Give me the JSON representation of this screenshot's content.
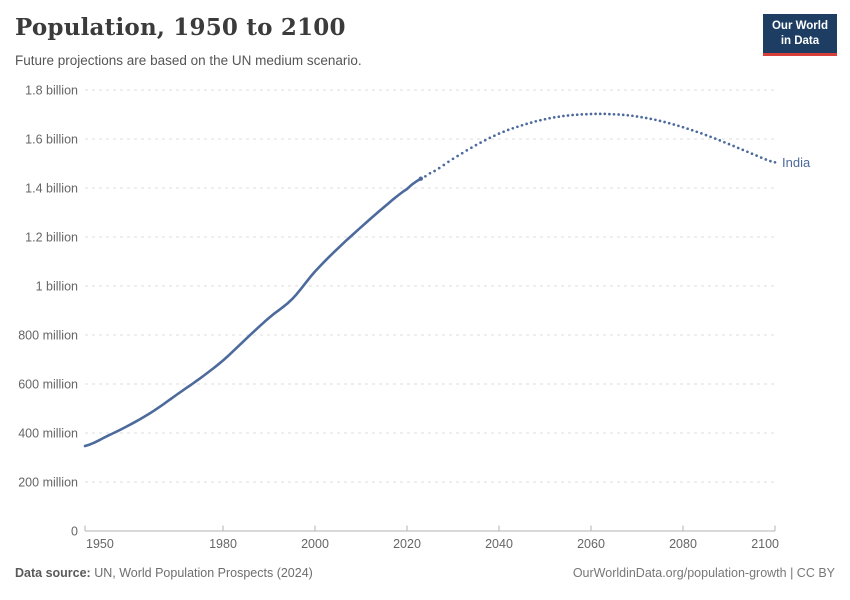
{
  "header": {
    "title": "Population, 1950 to 2100",
    "subtitle": "Future projections are based on the UN medium scenario."
  },
  "logo": {
    "line1": "Our World",
    "line2": "in Data",
    "bg_color": "#1d3d63",
    "accent_color": "#d7403a"
  },
  "chart_data": {
    "type": "line",
    "title": "Population, 1950 to 2100",
    "subtitle": "Future projections are based on the UN medium scenario.",
    "entity": "India",
    "end_label": "India",
    "color": "#4c6a9c",
    "grid": "dashed-horizontal",
    "projection_style": "dotted",
    "historical_until": 2023,
    "x_range": [
      1950,
      2100
    ],
    "ylim_millions": [
      0,
      1800
    ],
    "xticks": [
      1950,
      1980,
      2000,
      2020,
      2040,
      2060,
      2080,
      2100
    ],
    "yticks": [
      {
        "value": 1800,
        "label": "1.8 billion"
      },
      {
        "value": 1600,
        "label": "1.6 billion"
      },
      {
        "value": 1400,
        "label": "1.4 billion"
      },
      {
        "value": 1200,
        "label": "1.2 billion"
      },
      {
        "value": 1000,
        "label": "1 billion"
      },
      {
        "value": 800,
        "label": "800 million"
      },
      {
        "value": 600,
        "label": "600 million"
      },
      {
        "value": 400,
        "label": "400 million"
      },
      {
        "value": 200,
        "label": "200 million"
      },
      {
        "value": 0,
        "label": "0"
      }
    ],
    "series": [
      {
        "name": "India",
        "unit": "millions_of_people",
        "points": [
          [
            1950,
            347
          ],
          [
            1955,
            389
          ],
          [
            1960,
            436
          ],
          [
            1965,
            491
          ],
          [
            1970,
            557
          ],
          [
            1975,
            623
          ],
          [
            1980,
            696
          ],
          [
            1985,
            784
          ],
          [
            1990,
            870
          ],
          [
            1995,
            946
          ],
          [
            2000,
            1059
          ],
          [
            2005,
            1154
          ],
          [
            2010,
            1240
          ],
          [
            2015,
            1322
          ],
          [
            2020,
            1396
          ],
          [
            2023,
            1438
          ],
          [
            2025,
            1460
          ],
          [
            2030,
            1519
          ],
          [
            2035,
            1575
          ],
          [
            2040,
            1622
          ],
          [
            2045,
            1656
          ],
          [
            2050,
            1681
          ],
          [
            2055,
            1696
          ],
          [
            2060,
            1702
          ],
          [
            2065,
            1701
          ],
          [
            2070,
            1692
          ],
          [
            2075,
            1674
          ],
          [
            2080,
            1648
          ],
          [
            2085,
            1616
          ],
          [
            2090,
            1579
          ],
          [
            2095,
            1540
          ],
          [
            2100,
            1505
          ]
        ]
      }
    ]
  },
  "footer": {
    "datasource_label": "Data source:",
    "datasource_text": " UN, World Population Prospects (2024)",
    "right_text": "OurWorldinData.org/population-growth | CC BY"
  }
}
